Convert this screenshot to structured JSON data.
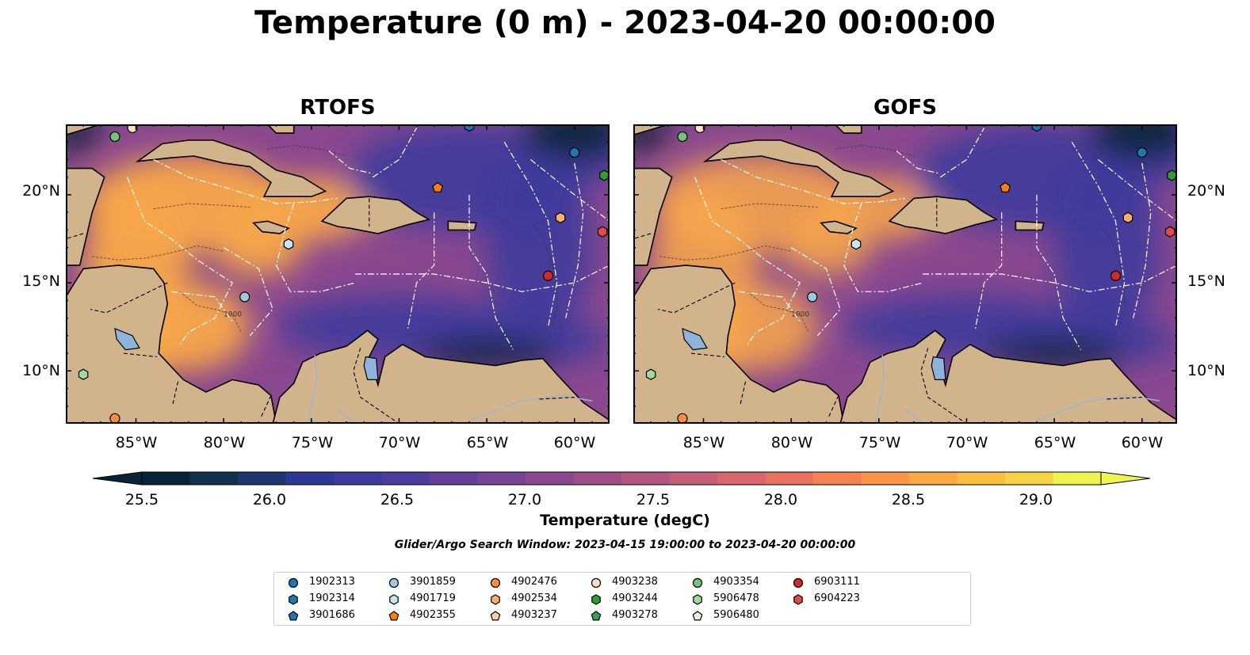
{
  "title": "Temperature (0 m) - 2023-04-20 00:00:00",
  "panels": [
    {
      "title": "RTOFS"
    },
    {
      "title": "GOFS"
    }
  ],
  "lat_labels": [
    "20°N",
    "15°N",
    "10°N"
  ],
  "lon_labels": [
    "85°W",
    "80°W",
    "75°W",
    "70°W",
    "65°W",
    "60°W"
  ],
  "colorbar": {
    "label": "Temperature (degC)",
    "ticks": [
      "25.5",
      "26.0",
      "26.5",
      "27.0",
      "27.5",
      "28.0",
      "28.5",
      "29.0"
    ],
    "colors": [
      "#07243a",
      "#11304e",
      "#1f3570",
      "#2c3891",
      "#3e3a9b",
      "#4f3b9b",
      "#633f9a",
      "#764396",
      "#8a488f",
      "#9d4e88",
      "#b15680",
      "#c55e78",
      "#d8676d",
      "#ea7160",
      "#f78152",
      "#fb9548",
      "#fcaa42",
      "#fcbd41",
      "#f7d445",
      "#eff350"
    ]
  },
  "search_window": "Glider/Argo Search Window: 2023-04-15 19:00:00 to 2023-04-20 00:00:00",
  "map": {
    "extent_lon": [
      -89,
      -58
    ],
    "extent_lat": [
      7,
      24
    ],
    "land_color": "#d2b48c",
    "lake_color": "#8eb4dc",
    "ocean_colors": {
      "warm": "#f8a84a",
      "mid": "#8a488f",
      "cool": "#3e3a9b",
      "cold": "#07243a",
      "hot": "#eff350"
    },
    "land_label_1000": "1000"
  },
  "legend": [
    {
      "id": "1902313",
      "color": "#1f77b4",
      "shape": "circle"
    },
    {
      "id": "1902314",
      "color": "#1f77b4",
      "shape": "hexagon"
    },
    {
      "id": "3901686",
      "color": "#1f77b4",
      "shape": "pentagon"
    },
    {
      "id": "3901859",
      "color": "#9ecae1",
      "shape": "circle"
    },
    {
      "id": "4901719",
      "color": "#c6e7f7",
      "shape": "hexagon"
    },
    {
      "id": "4902355",
      "color": "#ff7f0e",
      "shape": "pentagon"
    },
    {
      "id": "4902476",
      "color": "#fd8d3c",
      "shape": "circle"
    },
    {
      "id": "4902534",
      "color": "#fdae6b",
      "shape": "hexagon"
    },
    {
      "id": "4903237",
      "color": "#fdd0a2",
      "shape": "pentagon"
    },
    {
      "id": "4903238",
      "color": "#fde0c5",
      "shape": "circle"
    },
    {
      "id": "4903244",
      "color": "#2ca02c",
      "shape": "hexagon"
    },
    {
      "id": "4903278",
      "color": "#31a354",
      "shape": "pentagon"
    },
    {
      "id": "4903354",
      "color": "#74c476",
      "shape": "circle"
    },
    {
      "id": "5906478",
      "color": "#a1d99b",
      "shape": "hexagon"
    },
    {
      "id": "5906480",
      "color": "#dff5d6",
      "shape": "pentagon"
    },
    {
      "id": "6903111",
      "color": "#d62728",
      "shape": "circle"
    },
    {
      "id": "6904223",
      "color": "#e34a4a",
      "shape": "hexagon"
    }
  ],
  "floats": [
    {
      "id": "1902313",
      "lon": -60.0,
      "lat": 22.4
    },
    {
      "id": "1902314",
      "lon": -66.0,
      "lat": 23.9
    },
    {
      "id": "3901859",
      "lon": -78.8,
      "lat": 14.2
    },
    {
      "id": "4901719",
      "lon": -76.3,
      "lat": 17.2
    },
    {
      "id": "4902355",
      "lon": -67.8,
      "lat": 20.4
    },
    {
      "id": "4902476",
      "lon": -86.2,
      "lat": 7.3
    },
    {
      "id": "4902534",
      "lon": -60.8,
      "lat": 18.7
    },
    {
      "id": "4903238",
      "lon": -85.2,
      "lat": 23.8
    },
    {
      "id": "4903244",
      "lon": -58.3,
      "lat": 21.1
    },
    {
      "id": "4903354",
      "lon": -86.2,
      "lat": 23.3
    },
    {
      "id": "5906478",
      "lon": -88.0,
      "lat": 9.8
    },
    {
      "id": "6903111",
      "lon": -61.5,
      "lat": 15.4
    },
    {
      "id": "6904223",
      "lon": -58.4,
      "lat": 17.9
    }
  ]
}
